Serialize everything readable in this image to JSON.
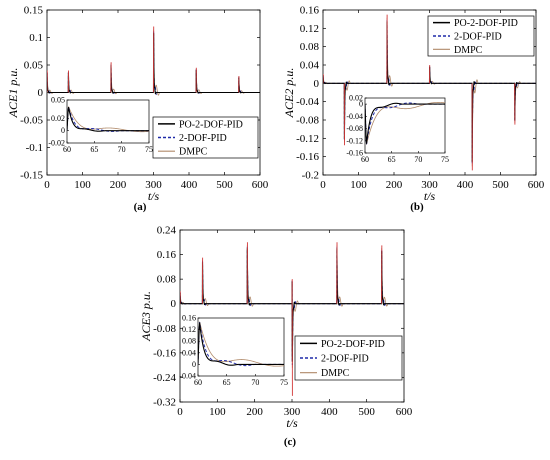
{
  "figure": {
    "panels": [
      "(a)",
      "(b)",
      "(c)"
    ]
  },
  "colors": {
    "PO-2-DOF-PID": "#000000",
    "2-DOF-PID": "#1f2aa8",
    "DMPC": "#b08a6a",
    "spike_trace": "#d23a3a"
  },
  "chart_data": [
    {
      "type": "line",
      "panel_label": "(a)",
      "ylabel": "ACE1 p.u.",
      "xlabel": "t/s",
      "xlim": [
        0,
        600
      ],
      "ylim": [
        -0.15,
        0.15
      ],
      "xticks": [
        0,
        100,
        200,
        300,
        400,
        500,
        600
      ],
      "yticks": [
        -0.15,
        -0.1,
        -0.05,
        0,
        0.05,
        0.1,
        0.15
      ],
      "ytick_labels": [
        "-0.15",
        "-0.1",
        "-0.05",
        "0",
        "0.05",
        "0.1",
        "0.15"
      ],
      "legend": {
        "placement": "lower-right",
        "entries": [
          "PO-2-DOF-PID",
          "2-DOF-PID",
          "DMPC"
        ]
      },
      "disturbances": [
        {
          "t": 0,
          "peak": 0.04
        },
        {
          "t": 60,
          "peak": 0.04
        },
        {
          "t": 180,
          "peak": 0.055
        },
        {
          "t": 300,
          "peak": 0.12
        },
        {
          "t": 420,
          "peak": 0.045
        },
        {
          "t": 540,
          "peak": 0.03
        }
      ],
      "series": [
        {
          "name": "PO-2-DOF-PID",
          "style": "solid"
        },
        {
          "name": "2-DOF-PID",
          "style": "dashed"
        },
        {
          "name": "DMPC",
          "style": "thin"
        }
      ],
      "inset": {
        "xlim": [
          60,
          75
        ],
        "ylim": [
          -0.02,
          0.05
        ],
        "xticks": [
          60,
          65,
          70,
          75
        ],
        "yticks": [
          -0.02,
          0,
          0.02,
          0.05
        ],
        "ytick_labels": [
          "-0.02",
          "0",
          "0.02",
          "0.05"
        ]
      }
    },
    {
      "type": "line",
      "panel_label": "(b)",
      "ylabel": "ACE2 p.u.",
      "xlabel": "t/s",
      "xlim": [
        0,
        600
      ],
      "ylim": [
        -0.2,
        0.16
      ],
      "xticks": [
        0,
        100,
        200,
        300,
        400,
        500,
        600
      ],
      "yticks": [
        -0.2,
        -0.16,
        -0.12,
        -0.08,
        -0.04,
        0,
        0.04,
        0.08,
        0.12,
        0.16
      ],
      "ytick_labels": [
        "-0.2",
        "-0.16",
        "-0.12",
        "-0.08",
        "-0.04",
        "0",
        "0.04",
        "0.08",
        "0.12",
        "0.16"
      ],
      "legend": {
        "placement": "top-right",
        "entries": [
          "PO-2-DOF-PID",
          "2-DOF-PID",
          "DMPC"
        ]
      },
      "disturbances": [
        {
          "t": 0,
          "peak": 0.02
        },
        {
          "t": 60,
          "peak": -0.135
        },
        {
          "t": 180,
          "peak": 0.15
        },
        {
          "t": 300,
          "peak": 0.04
        },
        {
          "t": 420,
          "peak": -0.19
        },
        {
          "t": 540,
          "peak": -0.09
        }
      ],
      "series": [
        {
          "name": "PO-2-DOF-PID",
          "style": "solid"
        },
        {
          "name": "2-DOF-PID",
          "style": "dashed"
        },
        {
          "name": "DMPC",
          "style": "thin"
        }
      ],
      "inset": {
        "xlim": [
          60,
          75
        ],
        "ylim": [
          -0.16,
          0.02
        ],
        "xticks": [
          60,
          65,
          70,
          75
        ],
        "yticks": [
          -0.16,
          -0.12,
          -0.08,
          -0.04,
          0,
          0.02
        ],
        "ytick_labels": [
          "-0.16",
          "-0.12",
          "-0.08",
          "-0.04",
          "0",
          "0.02"
        ]
      }
    },
    {
      "type": "line",
      "panel_label": "(c)",
      "ylabel": "ACE3 p.u.",
      "xlabel": "t/s",
      "xlim": [
        0,
        600
      ],
      "ylim": [
        -0.32,
        0.24
      ],
      "xticks": [
        0,
        100,
        200,
        300,
        400,
        500,
        600
      ],
      "yticks": [
        -0.32,
        -0.24,
        -0.16,
        -0.08,
        0,
        0.08,
        0.16,
        0.24
      ],
      "ytick_labels": [
        "-0.32",
        "-0.24",
        "-0.16",
        "-0.08",
        "0",
        "0.08",
        "0.16",
        "0.24"
      ],
      "legend": {
        "placement": "lower-right",
        "entries": [
          "PO-2-DOF-PID",
          "2-DOF-PID",
          "DMPC"
        ]
      },
      "disturbances": [
        {
          "t": 0,
          "peak": 0.04
        },
        {
          "t": 60,
          "peak": 0.15
        },
        {
          "t": 180,
          "peak": 0.2
        },
        {
          "t": 300,
          "peak": 0.08
        },
        {
          "t": 300.5,
          "peak": -0.3
        },
        {
          "t": 420,
          "peak": 0.2
        },
        {
          "t": 540,
          "peak": 0.19
        }
      ],
      "series": [
        {
          "name": "PO-2-DOF-PID",
          "style": "solid"
        },
        {
          "name": "2-DOF-PID",
          "style": "dashed"
        },
        {
          "name": "DMPC",
          "style": "thin"
        }
      ],
      "inset": {
        "xlim": [
          60,
          75
        ],
        "ylim": [
          -0.04,
          0.16
        ],
        "xticks": [
          60,
          65,
          70,
          75
        ],
        "yticks": [
          -0.04,
          0,
          0.04,
          0.08,
          0.12,
          0.16
        ],
        "ytick_labels": [
          "-0.04",
          "0",
          "0.04",
          "0.08",
          "0.12",
          "0.16"
        ]
      }
    }
  ]
}
